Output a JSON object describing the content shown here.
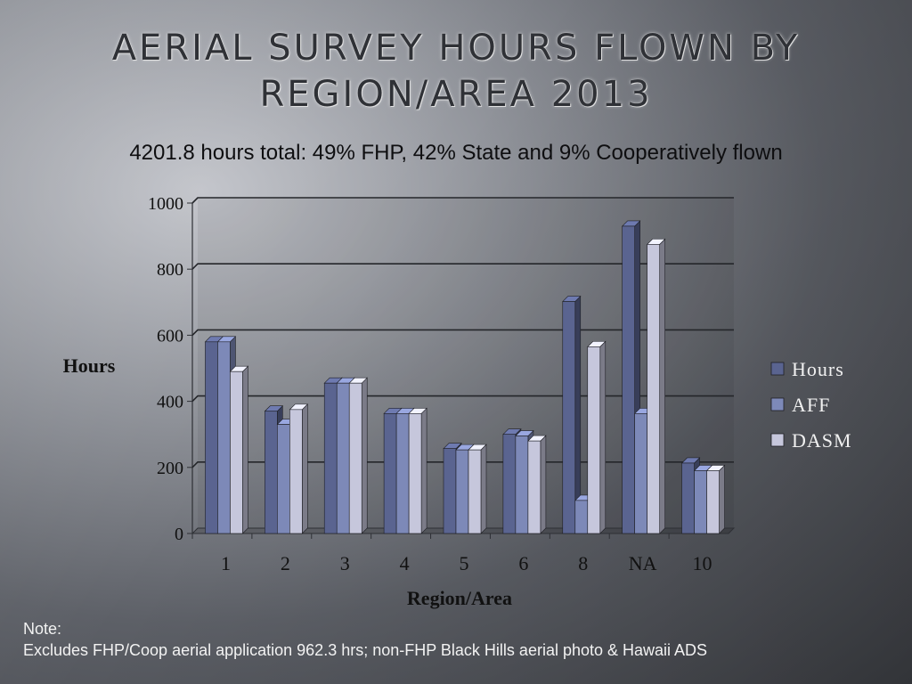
{
  "slide": {
    "title_line1": "AERIAL SURVEY HOURS FLOWN BY",
    "title_line2": "REGION/AREA 2013",
    "subtitle": "4201.8 hours total: 49% FHP, 42% State and 9% Cooperatively flown",
    "note_label": "Note:",
    "note_text": "Excludes FHP/Coop aerial application 962.3 hrs; non-FHP Black Hills aerial photo & Hawaii ADS"
  },
  "chart_data": {
    "type": "bar",
    "title": "",
    "xlabel": "Region/Area",
    "ylabel": "Hours",
    "categories": [
      "1",
      "2",
      "3",
      "4",
      "5",
      "6",
      "8",
      "NA",
      "10"
    ],
    "series": [
      {
        "name": "Hours",
        "color": "#5a6490",
        "values": [
          580,
          370,
          455,
          363,
          257,
          300,
          702,
          930,
          213
        ]
      },
      {
        "name": "AFF",
        "color": "#7d89b8",
        "values": [
          580,
          330,
          455,
          363,
          253,
          295,
          100,
          363,
          190
        ]
      },
      {
        "name": "DASM",
        "color": "#c6c7dc",
        "values": [
          490,
          375,
          455,
          363,
          253,
          280,
          565,
          875,
          190
        ]
      }
    ],
    "ylim": [
      0,
      1000
    ],
    "yticks": [
      0,
      200,
      400,
      600,
      800,
      1000
    ],
    "grid": true,
    "legend": "right"
  }
}
